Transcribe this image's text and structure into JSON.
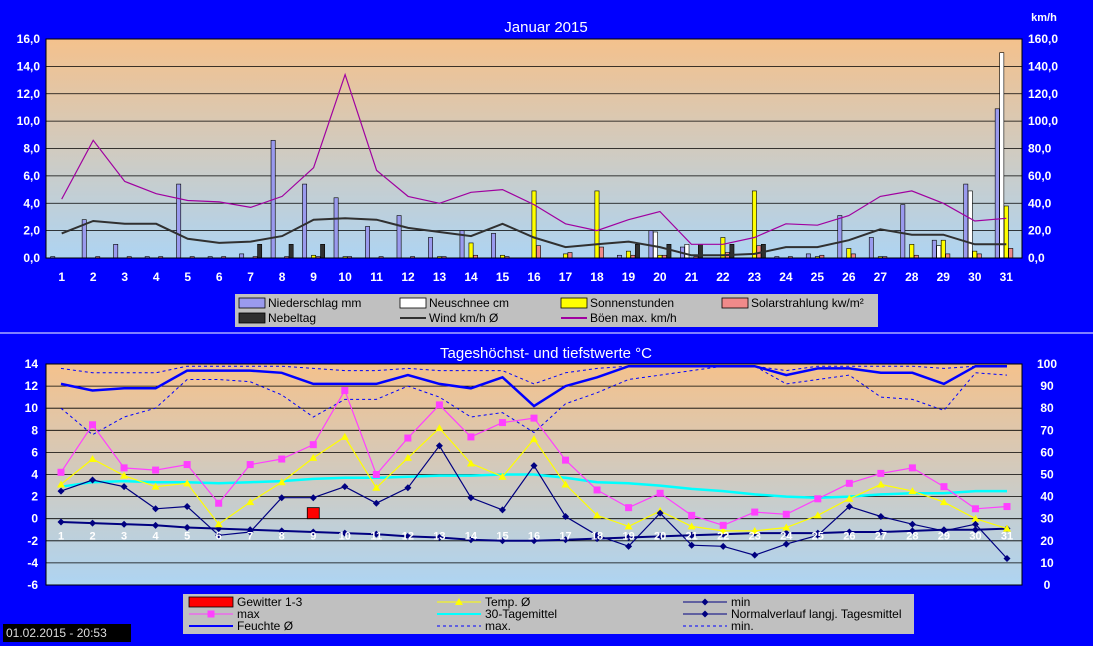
{
  "colors": {
    "background": "#0000ff",
    "plot_gradient_top": "#f4c18c",
    "plot_gradient_bottom": "#aed4f2",
    "legend_bg": "#c0c0c0",
    "precip": "#9a9aee",
    "snow": "#ffffff",
    "sun": "#ffff00",
    "solar": "#f08a8a",
    "fog": "#303030",
    "wind": "#303030",
    "gust": "#a000a0",
    "thunder": "#ff0000",
    "temp_mean": "#ffff00",
    "temp_max": "#ff40ff",
    "temp_min": "#000080",
    "avg30": "#00ffff",
    "normal": "#000080",
    "humidity": "#0000ff"
  },
  "timestamp": "01.02.2015 - 20:53",
  "chart_data": [
    {
      "type": "bar",
      "title": "Januar 2015",
      "y2_unit": "km/h",
      "ylim": [
        0,
        16
      ],
      "y2lim": [
        0,
        160
      ],
      "yticks": [
        "0,0",
        "2,0",
        "4,0",
        "6,0",
        "8,0",
        "10,0",
        "12,0",
        "14,0",
        "16,0"
      ],
      "y2ticks": [
        "0,0",
        "20,0",
        "40,0",
        "60,0",
        "80,0",
        "100,0",
        "120,0",
        "140,0",
        "160,0"
      ],
      "x": [
        "1",
        "2",
        "3",
        "4",
        "5",
        "6",
        "7",
        "8",
        "9",
        "10",
        "11",
        "12",
        "13",
        "14",
        "15",
        "16",
        "17",
        "18",
        "19",
        "20",
        "21",
        "22",
        "23",
        "24",
        "25",
        "26",
        "27",
        "28",
        "29",
        "30",
        "31"
      ],
      "grid": true,
      "legend_placement": "bottom",
      "series": [
        {
          "name": "Niederschlag mm",
          "kind": "bar",
          "axis": "left",
          "values": [
            0.1,
            2.8,
            1.0,
            0.1,
            5.4,
            0.1,
            0.3,
            8.6,
            5.4,
            4.4,
            2.3,
            3.1,
            1.5,
            2.0,
            1.8,
            0,
            0,
            0,
            0.2,
            2.0,
            0.8,
            0,
            0,
            0.1,
            0.3,
            3.1,
            1.5,
            3.9,
            1.3,
            5.4,
            10.9
          ]
        },
        {
          "name": "Neuschnee cm",
          "kind": "bar",
          "axis": "left",
          "values": [
            0,
            0,
            0,
            0,
            0,
            0,
            0,
            0,
            0,
            0,
            0,
            0,
            0,
            0,
            0,
            0,
            0,
            0,
            0,
            1.9,
            1.0,
            0,
            0,
            0,
            0,
            0,
            0,
            0,
            0.9,
            4.9,
            15.0
          ]
        },
        {
          "name": "Sonnenstunden",
          "kind": "bar",
          "axis": "left",
          "values": [
            0,
            0,
            0,
            0,
            0,
            0,
            0,
            0,
            0.2,
            0.1,
            0,
            0,
            0.1,
            1.1,
            0.2,
            4.9,
            0.3,
            4.9,
            0.5,
            0.2,
            0,
            1.5,
            4.9,
            0,
            0.1,
            0.7,
            0.1,
            1.0,
            1.3,
            0.5,
            3.8
          ]
        },
        {
          "name": "Solarstrahlung kw/m²",
          "kind": "bar",
          "axis": "left",
          "values": [
            0,
            0.1,
            0.1,
            0.1,
            0.1,
            0.1,
            0.1,
            0.1,
            0.1,
            0.1,
            0.1,
            0.1,
            0.1,
            0.2,
            0.1,
            0.9,
            0.4,
            0.8,
            0.2,
            0.2,
            0.1,
            0.4,
            0.9,
            0.1,
            0.2,
            0.3,
            0.1,
            0.2,
            0.3,
            0.3,
            0.7
          ]
        },
        {
          "name": "Nebeltag",
          "kind": "bar",
          "axis": "left",
          "values": [
            0,
            0,
            0,
            0,
            0,
            0,
            1,
            1,
            1,
            0,
            0,
            0,
            0,
            0,
            0,
            0,
            0,
            0,
            1,
            1,
            1,
            1,
            1,
            0,
            0,
            0,
            0,
            0,
            0,
            0,
            0
          ]
        },
        {
          "name": "Wind km/h Ø",
          "kind": "line",
          "axis": "right",
          "values": [
            18,
            27,
            25,
            25,
            14,
            11,
            12,
            16,
            28,
            29,
            28,
            22,
            19,
            16,
            25,
            15,
            8,
            10,
            12,
            8,
            2,
            2,
            3,
            8,
            8,
            13,
            21,
            17,
            17,
            10,
            10
          ]
        },
        {
          "name": "Böen max. km/h",
          "kind": "line",
          "axis": "right",
          "values": [
            43,
            86,
            56,
            47,
            42,
            41,
            37,
            45,
            66,
            134,
            64,
            45,
            40,
            48,
            50,
            39,
            25,
            20,
            28,
            34,
            10,
            10,
            15,
            25,
            24,
            31,
            45,
            49,
            40,
            27,
            29
          ]
        }
      ]
    },
    {
      "type": "line",
      "title": "Tageshöchst- und tiefstwerte °C",
      "ylim": [
        -6,
        14
      ],
      "y2lim": [
        0,
        100
      ],
      "yticks": [
        "-6",
        "-4",
        "-2",
        "0",
        "2",
        "4",
        "6",
        "8",
        "10",
        "12",
        "14"
      ],
      "y2ticks": [
        "0",
        "10",
        "20",
        "30",
        "40",
        "50",
        "60",
        "70",
        "80",
        "90",
        "100"
      ],
      "x": [
        "1",
        "2",
        "3",
        "4",
        "5",
        "6",
        "7",
        "8",
        "9",
        "10",
        "11",
        "12",
        "13",
        "14",
        "15",
        "16",
        "17",
        "18",
        "19",
        "20",
        "21",
        "22",
        "23",
        "24",
        "25",
        "26",
        "27",
        "28",
        "29",
        "30",
        "31"
      ],
      "grid": true,
      "legend_placement": "bottom",
      "series": [
        {
          "name": "Gewitter 1-3",
          "kind": "bar",
          "axis": "left",
          "values": [
            0,
            0,
            0,
            0,
            0,
            0,
            0,
            0,
            1,
            0,
            0,
            0,
            0,
            0,
            0,
            0,
            0,
            0,
            0,
            0,
            0,
            0,
            0,
            0,
            0,
            0,
            0,
            0,
            0,
            0,
            0
          ]
        },
        {
          "name": "Temp. Ø",
          "kind": "line",
          "axis": "left",
          "values": [
            3.1,
            5.4,
            3.9,
            2.9,
            3.2,
            -0.5,
            1.5,
            3.3,
            5.5,
            7.4,
            2.8,
            5.5,
            8.2,
            5.0,
            3.8,
            7.2,
            3.1,
            0.3,
            -0.7,
            0.7,
            -0.7,
            -1.1,
            -1.1,
            -0.8,
            0.3,
            1.8,
            3.1,
            2.5,
            1.5,
            0,
            -0.9
          ]
        },
        {
          "name": "max",
          "kind": "line",
          "axis": "left",
          "values": [
            4.2,
            8.5,
            4.6,
            4.4,
            4.9,
            1.4,
            4.9,
            5.4,
            6.7,
            11.6,
            4.0,
            7.3,
            10.3,
            7.4,
            8.7,
            9.1,
            5.3,
            2.6,
            1.0,
            2.3,
            0.3,
            -0.6,
            0.6,
            0.4,
            1.8,
            3.2,
            4.1,
            4.6,
            2.9,
            0.9,
            1.1
          ]
        },
        {
          "name": "min",
          "kind": "line",
          "axis": "left",
          "values": [
            2.5,
            3.5,
            2.9,
            0.9,
            1.1,
            -1.5,
            -1.2,
            1.9,
            1.9,
            2.9,
            1.4,
            2.8,
            6.6,
            1.9,
            0.8,
            4.8,
            0.2,
            -1.5,
            -2.5,
            0.5,
            -2.4,
            -2.5,
            -3.3,
            -2.3,
            -1.5,
            1.1,
            0.2,
            -0.5,
            -1.1,
            -0.5,
            -3.6
          ]
        },
        {
          "name": "30-Tagemittel",
          "kind": "line",
          "axis": "left",
          "values": [
            2.9,
            3.3,
            3.4,
            3.3,
            3.3,
            3.2,
            3.3,
            3.4,
            3.6,
            3.7,
            3.7,
            3.8,
            3.9,
            3.9,
            4.0,
            4.0,
            3.7,
            3.3,
            3.2,
            3.0,
            2.7,
            2.5,
            2.2,
            2.0,
            1.9,
            2.0,
            2.2,
            2.3,
            2.3,
            2.5,
            2.5
          ]
        },
        {
          "name": "Normalverlauf langj. Tagesmittel",
          "kind": "line",
          "axis": "left",
          "values": [
            -0.3,
            -0.4,
            -0.5,
            -0.6,
            -0.8,
            -0.9,
            -1.0,
            -1.1,
            -1.2,
            -1.3,
            -1.4,
            -1.6,
            -1.7,
            -1.9,
            -2.0,
            -2.0,
            -1.9,
            -1.8,
            -1.7,
            -1.6,
            -1.5,
            -1.4,
            -1.3,
            -1.3,
            -1.3,
            -1.2,
            -1.2,
            -1.1,
            -1.0,
            -1.0,
            -0.9
          ]
        },
        {
          "name": "Feuchte Ø",
          "kind": "line",
          "axis": "right",
          "values": [
            91,
            88,
            89,
            89,
            97,
            97,
            97,
            96,
            91,
            91,
            91,
            95,
            91,
            89,
            94,
            81,
            90,
            94,
            99,
            99,
            99,
            99,
            99,
            95,
            98,
            98,
            96,
            96,
            91,
            99,
            99
          ]
        },
        {
          "name": "max.",
          "kind": "line",
          "axis": "right",
          "dashed": true,
          "values": [
            98,
            96,
            96,
            96,
            99,
            99,
            99,
            99,
            98,
            97,
            97,
            98,
            97,
            97,
            97,
            91,
            96,
            98,
            99,
            99,
            99,
            99,
            99,
            97,
            99,
            99,
            99,
            99,
            98,
            99,
            99
          ]
        },
        {
          "name": "min.",
          "kind": "line",
          "axis": "right",
          "dashed": true,
          "values": [
            80,
            68,
            76,
            80,
            93,
            93,
            92,
            86,
            76,
            84,
            84,
            90,
            85,
            76,
            78,
            69,
            82,
            87,
            93,
            95,
            97,
            99,
            99,
            91,
            93,
            95,
            85,
            84,
            79,
            96,
            95
          ]
        }
      ]
    }
  ]
}
